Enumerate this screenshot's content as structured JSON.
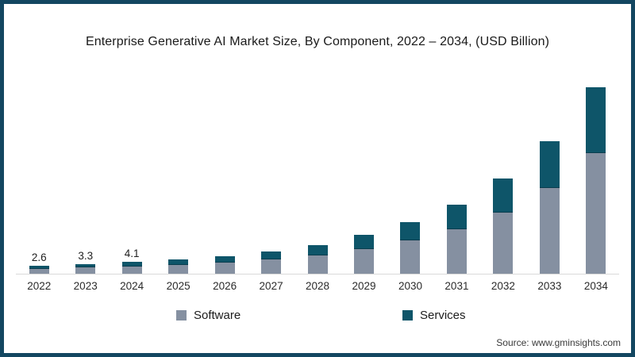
{
  "title": "Enterprise Generative AI Market Size, By Component, 2022 – 2034, (USD Billion)",
  "footer": {
    "source": "Source: www.gminsights.com"
  },
  "colors": {
    "border": "#134761",
    "software": "#8590a1",
    "services": "#0e5569",
    "axis_line": "#d9d9d9"
  },
  "chart_data": {
    "type": "bar",
    "stacked": true,
    "title": "Enterprise Generative AI Market Size, By Component, 2022 – 2034, (USD Billion)",
    "xlabel": "",
    "ylabel": "USD Billion",
    "grid": false,
    "legend_position": "bottom",
    "ylim": [
      0,
      74
    ],
    "categories": [
      "2022",
      "2023",
      "2024",
      "2025",
      "2026",
      "2027",
      "2028",
      "2029",
      "2030",
      "2031",
      "2032",
      "2033",
      "2034"
    ],
    "series": [
      {
        "name": "Software",
        "color": "#8590a1",
        "values": [
          1.7,
          2.2,
          2.7,
          3.3,
          4.0,
          5.1,
          6.7,
          9.1,
          12.1,
          16.3,
          22.5,
          31.3,
          44.0
        ]
      },
      {
        "name": "Services",
        "color": "#0e5569",
        "values": [
          0.9,
          1.1,
          1.4,
          1.7,
          2.2,
          2.7,
          3.6,
          4.9,
          6.6,
          8.6,
          12.2,
          16.9,
          23.8
        ]
      }
    ],
    "totals": [
      2.6,
      3.3,
      4.1,
      5.0,
      6.2,
      7.8,
      10.3,
      14.0,
      18.7,
      24.9,
      34.7,
      48.2,
      67.8
    ],
    "bar_value_labels": [
      "2.6",
      "3.3",
      "4.1",
      "",
      "",
      "",
      "",
      "",
      "",
      "",
      "",
      "",
      ""
    ]
  }
}
